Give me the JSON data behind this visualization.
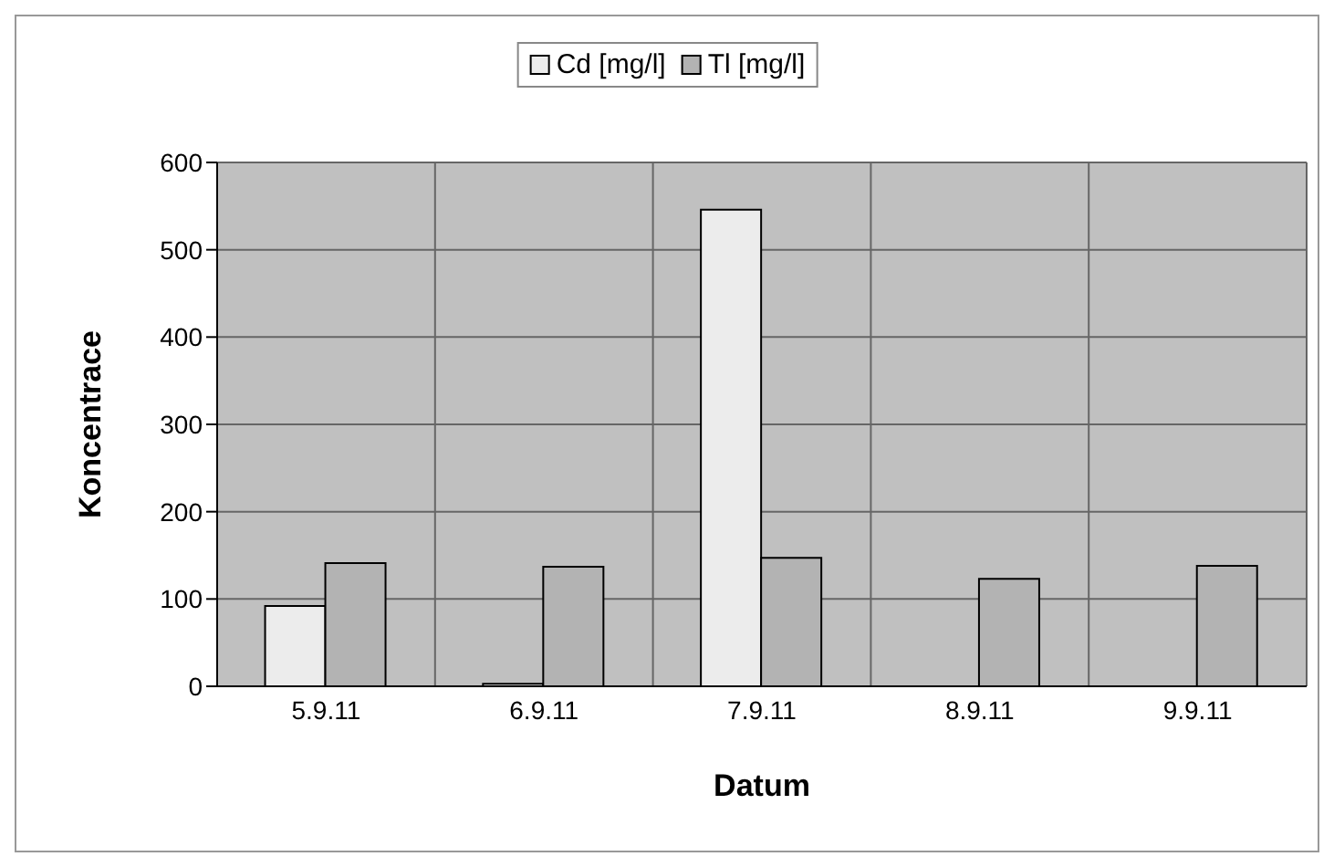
{
  "chart_data": {
    "type": "bar",
    "xlabel": "Datum",
    "ylabel": "Koncentrace",
    "categories": [
      "5.9.11",
      "6.9.11",
      "7.9.11",
      "8.9.11",
      "9.9.11"
    ],
    "series": [
      {
        "name": "Cd [mg/l]",
        "color": "#ececec",
        "values": [
          92,
          3,
          546,
          null,
          null
        ]
      },
      {
        "name": "Tl [mg/l]",
        "color": "#b3b3b3",
        "values": [
          141,
          137,
          147,
          123,
          138
        ]
      }
    ],
    "ylim": [
      0,
      600
    ],
    "yticks": [
      0,
      100,
      200,
      300,
      400,
      500,
      600
    ],
    "grid": true,
    "legend": "top"
  }
}
